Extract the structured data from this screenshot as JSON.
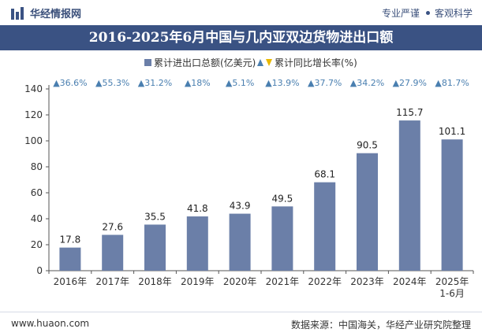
{
  "header": {
    "brand_name": "华经情报网",
    "slogan_left": "专业严谨",
    "slogan_right": "客观科学"
  },
  "colors": {
    "accent": "#3a5283",
    "bar": "#6b7fa8",
    "growth": "#4a7fb0"
  },
  "chart_data": {
    "type": "bar",
    "title": "2016-2025年6月中国与几内亚双边货物进出口额",
    "categories": [
      "2016年",
      "2017年",
      "2018年",
      "2019年",
      "2020年",
      "2021年",
      "2022年",
      "2023年",
      "2024年",
      "2025年1-6月"
    ],
    "series": [
      {
        "name": "累计进出口总额(亿美元)",
        "values": [
          17.8,
          27.6,
          35.5,
          41.8,
          43.9,
          49.5,
          68.1,
          90.5,
          115.7,
          101.1
        ],
        "value_labels": [
          "17.8",
          "27.6",
          "35.5",
          "41.8",
          "43.9",
          "49.5",
          "68.1",
          "90.5",
          "115.7",
          "101.1"
        ]
      },
      {
        "name": "累计同比增长率(%)",
        "values": [
          36.6,
          55.3,
          31.2,
          18,
          5.1,
          13.9,
          37.7,
          34.2,
          27.9,
          81.7
        ],
        "value_labels": [
          "▲36.6%",
          "▲55.3%",
          "▲31.2%",
          "▲18%",
          "▲5.1%",
          "▲13.9%",
          "▲37.7%",
          "▲34.2%",
          "▲27.9%",
          "▲81.7%"
        ]
      }
    ],
    "ylim": [
      0,
      140
    ],
    "yticks": [
      "0",
      "20",
      "40",
      "60",
      "80",
      "100",
      "120",
      "140"
    ],
    "legend_position": "top-center",
    "grid": false
  },
  "footer": {
    "website": "www.huaon.com",
    "source": "数据来源：中国海关，华经产业研究院整理"
  }
}
